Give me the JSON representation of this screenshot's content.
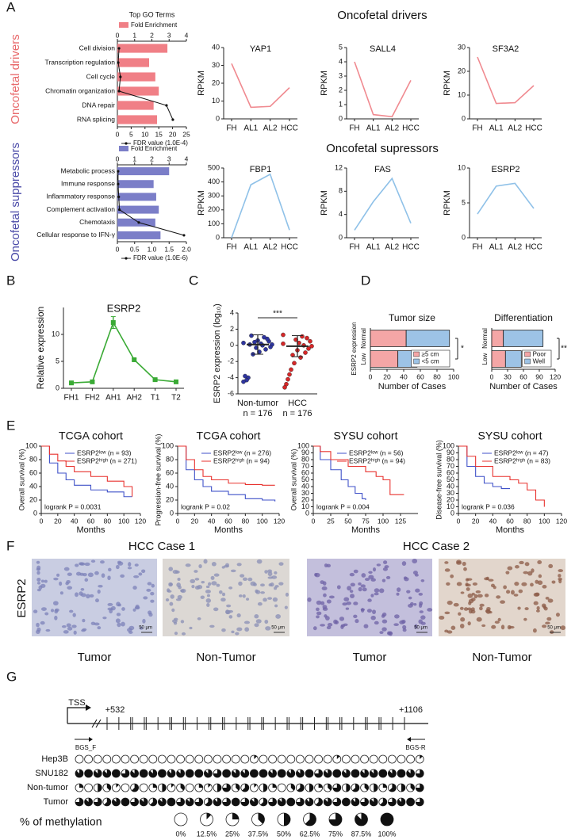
{
  "panel_labels": [
    "A",
    "B",
    "C",
    "D",
    "E",
    "F",
    "G"
  ],
  "panel_a": {
    "row_titles": [
      "Oncofetal drivers",
      "Oncofetal supressors"
    ],
    "side_labels": [
      "Oncofetal drivers",
      "Oncofetal suppressors"
    ]
  },
  "chart_data": [
    {
      "type": "bar",
      "orientation": "horizontal",
      "title": "Top GO Terms",
      "categories": [
        "Cell division",
        "Transcription regulation",
        "Cell cycle",
        "Chromatin organization",
        "DNA repair",
        "RNA splicing"
      ],
      "series": [
        {
          "name": "Fold Enrichment",
          "color": "#f07f86",
          "values": [
            2.9,
            1.84,
            2.2,
            2.4,
            2.1,
            2.3
          ]
        },
        {
          "name": "FDR value (1.0E-4)",
          "color": "#111111",
          "axis": "x2",
          "values": [
            0.6,
            0.3,
            1.1,
            0.6,
            17.8,
            20.1
          ]
        }
      ],
      "xlim": [
        0,
        4
      ],
      "xticks": [
        0,
        1,
        2,
        3,
        4
      ],
      "x2lim": [
        0,
        25
      ],
      "x2ticks": [
        0,
        5,
        10,
        15,
        20,
        25
      ]
    },
    {
      "type": "bar",
      "orientation": "horizontal",
      "categories": [
        "Metabolic process",
        "Immune response",
        "Inflammatory response",
        "Complement activation",
        "Chemotaxis",
        "Cellular response to IFN-γ"
      ],
      "series": [
        {
          "name": "Fold Enrichment",
          "color": "#7b7ec8",
          "values": [
            3.0,
            2.1,
            2.25,
            2.4,
            2.2,
            2.5
          ]
        },
        {
          "name": "FDR value (1.0E-6)",
          "color": "#111111",
          "axis": "x2",
          "values": [
            0.02,
            0.02,
            0.04,
            0.06,
            0.62,
            1.93
          ]
        }
      ],
      "xlim": [
        0,
        4
      ],
      "xticks": [
        0,
        1,
        2,
        3,
        4
      ],
      "x2lim": [
        0,
        2
      ],
      "x2ticks": [
        0,
        0.5,
        {
          "value": 1,
          "label": "1.0"
        },
        1.5,
        {
          "value": 2,
          "label": "2.0"
        }
      ]
    },
    {
      "type": "line",
      "title": "YAP1",
      "ylabel": "RPKM",
      "categories": [
        "FH",
        "AL1",
        "AL2",
        "HCC"
      ],
      "values": [
        31,
        6.5,
        7,
        17.5
      ],
      "color": "#f08a90",
      "ylim": [
        0,
        40
      ],
      "yticks": [
        0,
        10,
        20,
        30,
        40
      ]
    },
    {
      "type": "line",
      "title": "SALL4",
      "ylabel": "RPKM",
      "categories": [
        "FH",
        "AL1",
        "AL2",
        "HCC"
      ],
      "values": [
        4,
        0.3,
        0.15,
        2.7
      ],
      "color": "#f08a90",
      "ylim": [
        0,
        5
      ],
      "yticks": [
        0,
        1,
        2,
        3,
        4,
        5
      ]
    },
    {
      "type": "line",
      "title": "SF3A2",
      "ylabel": "RPKM",
      "categories": [
        "FH",
        "AL1",
        "AL2",
        "HCC"
      ],
      "values": [
        26,
        6.5,
        6.8,
        14
      ],
      "color": "#f08a90",
      "ylim": [
        0,
        30
      ],
      "yticks": [
        0,
        10,
        20,
        30
      ]
    },
    {
      "type": "line",
      "title": "FBP1",
      "ylabel": "RPKM",
      "categories": [
        "FH",
        "AL1",
        "AL2",
        "HCC"
      ],
      "values": [
        0,
        380,
        455,
        55
      ],
      "color": "#8fc1e8",
      "ylim": [
        0,
        500
      ],
      "yticks": [
        0,
        100,
        200,
        300,
        400,
        500
      ]
    },
    {
      "type": "line",
      "title": "FAS",
      "ylabel": "RPKM",
      "categories": [
        "FH",
        "AL1",
        "AL2",
        "HCC"
      ],
      "values": [
        1.3,
        6.2,
        10.2,
        2.5
      ],
      "color": "#8fc1e8",
      "ylim": [
        0,
        12
      ],
      "yticks": [
        0,
        4,
        8,
        12
      ]
    },
    {
      "type": "line",
      "title": "ESRP2",
      "ylabel": "RPKM",
      "categories": [
        "FH",
        "AL1",
        "AL2",
        "HCC"
      ],
      "values": [
        3.4,
        7.4,
        7.8,
        4.2
      ],
      "color": "#8fc1e8",
      "ylim": [
        0,
        10
      ],
      "yticks": [
        0,
        5,
        10
      ]
    },
    {
      "type": "line",
      "title": "ESRP2",
      "ylabel": "Relative expression",
      "categories": [
        "FH1",
        "FH2",
        "AH1",
        "AH2",
        "T1",
        "T2"
      ],
      "values": [
        1.0,
        1.2,
        12.2,
        5.3,
        1.6,
        1.2
      ],
      "errors": [
        0.2,
        0.2,
        1.1,
        0.2,
        0.15,
        0.1
      ],
      "color": "#3aaa35",
      "ylim": [
        0,
        15
      ],
      "yticks": [
        0,
        5,
        10
      ]
    },
    {
      "type": "strip",
      "ylabel": "ESRP2 expression (log₁₀)",
      "categories": [
        "Non-tumor",
        "HCC"
      ],
      "n_labels": [
        "n = 176",
        "n = 176"
      ],
      "significance": "***",
      "colors": [
        "#2e35a0",
        "#d62728"
      ],
      "means": [
        0.1,
        -0.1
      ],
      "sds": [
        1.2,
        1.3
      ],
      "values": [
        [
          0.3,
          0.1,
          -0.2,
          0.5,
          0.8,
          -0.5,
          1.0,
          0.0,
          0.2,
          -0.8,
          0.6,
          -0.3,
          0.4,
          -1.1,
          1.2,
          0.1,
          -4.0,
          -4.3,
          -3.8,
          -4.5
        ],
        [
          0.2,
          -0.1,
          0.5,
          -0.4,
          0.9,
          -0.9,
          0.0,
          1.1,
          -1.5,
          0.3,
          -0.6,
          0.7,
          -2.2,
          -1.2,
          -3.0,
          -3.6,
          -4.2,
          -4.8,
          -5.2,
          1.3
        ]
      ],
      "ylim": [
        -6,
        4
      ],
      "yticks": [
        -6,
        -4,
        -2,
        0,
        2,
        4
      ]
    },
    {
      "type": "stacked",
      "orientation": "horizontal",
      "title": "Tumor size",
      "ylabel": "ESRP2 expression",
      "xlabel": "Number of Cases",
      "significance": "*",
      "categories": [
        "Normal",
        "Low"
      ],
      "series": [
        {
          "name": "≥5 cm",
          "color": "#f4a6a6",
          "values": [
            43,
            33
          ]
        },
        {
          "name": "<5 cm",
          "color": "#9dc3e6",
          "values": [
            52,
            23
          ]
        }
      ],
      "xlim": [
        0,
        100
      ],
      "xticks": [
        0,
        20,
        40,
        60,
        80,
        100
      ]
    },
    {
      "type": "stacked",
      "orientation": "horizontal",
      "title": "Differentiation",
      "xlabel": "Number of Cases",
      "significance": "**",
      "categories": [
        "Normal",
        "Low"
      ],
      "series": [
        {
          "name": "Poor",
          "color": "#f4a6a6",
          "values": [
            22,
            26
          ]
        },
        {
          "name": "Well",
          "color": "#9dc3e6",
          "values": [
            75,
            30
          ]
        }
      ],
      "xlim": [
        0,
        120
      ],
      "xticks": [
        0,
        30,
        60,
        90,
        120
      ]
    },
    {
      "type": "survival",
      "title": "TCGA cohort",
      "ylabel": "Overall survival (%)",
      "xlabel": "Months",
      "annotation": "logrank P = 0.0031",
      "series": [
        {
          "name": "ESRP2ˡᵒʷ (n = 93)",
          "color": "#3f51c8",
          "x": [
            0,
            10,
            20,
            30,
            40,
            60,
            80,
            100,
            110
          ],
          "values": [
            100,
            75,
            60,
            50,
            42,
            35,
            32,
            25,
            25
          ]
        },
        {
          "name": "ESRP2ʰⁱᵍʰ (n = 271)",
          "color": "#e8322e",
          "x": [
            0,
            10,
            20,
            30,
            40,
            60,
            80,
            100,
            110
          ],
          "values": [
            100,
            88,
            78,
            70,
            62,
            55,
            48,
            40,
            25
          ]
        }
      ],
      "xlim": [
        0,
        120
      ],
      "xticks": [
        0,
        20,
        40,
        60,
        80,
        100,
        120
      ],
      "ylim": [
        0,
        100
      ],
      "yticks": [
        0,
        20,
        40,
        60,
        80,
        100
      ]
    },
    {
      "type": "survival",
      "title": "TCGA cohort",
      "ylabel": "Progression-free survival (%)",
      "xlabel": "Months",
      "annotation": "logrank P = 0.02",
      "series": [
        {
          "name": "ESRP2ˡᵒʷ (n = 276)",
          "color": "#3f51c8",
          "x": [
            0,
            10,
            20,
            30,
            40,
            60,
            80,
            100,
            115
          ],
          "values": [
            100,
            65,
            50,
            40,
            33,
            28,
            22,
            20,
            18
          ]
        },
        {
          "name": "ESRP2ʰⁱᵍʰ (n = 94)",
          "color": "#e8322e",
          "x": [
            0,
            10,
            20,
            30,
            40,
            60,
            80,
            100,
            115
          ],
          "values": [
            100,
            80,
            65,
            55,
            50,
            45,
            43,
            42,
            42
          ]
        }
      ],
      "xlim": [
        0,
        120
      ],
      "xticks": [
        0,
        20,
        40,
        60,
        80,
        100,
        120
      ],
      "ylim": [
        0,
        100
      ],
      "yticks": [
        0,
        20,
        40,
        60,
        80,
        100
      ]
    },
    {
      "type": "survival",
      "title": "SYSU cohort",
      "ylabel": "Overall survival (%)",
      "xlabel": "Months",
      "annotation": "logrank P = 0.004",
      "series": [
        {
          "name": "ESRP2ˡᵒʷ (n = 56)",
          "color": "#3f51c8",
          "x": [
            0,
            10,
            25,
            40,
            50,
            60,
            70,
            75
          ],
          "values": [
            100,
            80,
            65,
            50,
            40,
            30,
            22,
            20
          ]
        },
        {
          "name": "ESRP2ʰⁱᵍʰ (n = 94)",
          "color": "#e8322e",
          "x": [
            0,
            10,
            25,
            50,
            75,
            90,
            100,
            110,
            130
          ],
          "values": [
            100,
            92,
            80,
            70,
            62,
            55,
            50,
            28,
            28
          ]
        }
      ],
      "xlim": [
        0,
        150
      ],
      "xticks": [
        0,
        25,
        50,
        75,
        100,
        125
      ],
      "ylim": [
        0,
        100
      ],
      "yticks": [
        0,
        10,
        20,
        30,
        40,
        50,
        60,
        70,
        80,
        90,
        100
      ]
    },
    {
      "type": "survival",
      "title": "SYSU cohort",
      "ylabel": "Disease-free survival (%)",
      "xlabel": "Months",
      "annotation": "logrank P = 0.036",
      "series": [
        {
          "name": "ESRP2ˡᵒʷ (n = 47)",
          "color": "#3f51c8",
          "x": [
            0,
            10,
            20,
            30,
            40,
            50,
            60
          ],
          "values": [
            100,
            70,
            55,
            45,
            40,
            37,
            37
          ]
        },
        {
          "name": "ESRP2ʰⁱᵍʰ (n = 83)",
          "color": "#e8322e",
          "x": [
            0,
            10,
            20,
            40,
            60,
            70,
            80,
            90,
            100
          ],
          "values": [
            100,
            85,
            70,
            55,
            50,
            45,
            35,
            20,
            10
          ]
        }
      ],
      "xlim": [
        0,
        120
      ],
      "xticks": [
        0,
        20,
        40,
        60,
        80,
        100,
        120
      ],
      "ylim": [
        0,
        100
      ],
      "yticks": [
        0,
        10,
        20,
        30,
        40,
        50,
        60,
        70,
        80,
        90,
        100
      ]
    }
  ],
  "images": {
    "titles": [
      "HCC Case 1",
      "HCC Case 2"
    ],
    "stain_label": "ESRP2",
    "labels": [
      "Tumor",
      "Non-Tumor",
      "Tumor",
      "Non-Tumor"
    ],
    "scale_bars": [
      "50 μm",
      "50 μm",
      "50 μm",
      "50 μm"
    ]
  },
  "methylation": {
    "tss": "TSS",
    "start": "+532",
    "end": "+1106",
    "primers": [
      "BGS_F",
      "BGS-R"
    ],
    "samples": [
      {
        "name": "Hep3B",
        "values": [
          0,
          0,
          0,
          0,
          0,
          0,
          0,
          0,
          0,
          0,
          0,
          0,
          0,
          0,
          0,
          0,
          0,
          0,
          0,
          12.5,
          0,
          0,
          0,
          0,
          0,
          0,
          0,
          0,
          12.5,
          0,
          0,
          0,
          0,
          0,
          0,
          0,
          0,
          12.5
        ]
      },
      {
        "name": "SNU182",
        "values": [
          87.5,
          100,
          87.5,
          87.5,
          100,
          75,
          87.5,
          100,
          87.5,
          100,
          87.5,
          87.5,
          100,
          100,
          87.5,
          75,
          100,
          87.5,
          87.5,
          100,
          100,
          87.5,
          100,
          87.5,
          87.5,
          100,
          75,
          87.5,
          100,
          87.5,
          100,
          87.5,
          87.5,
          100,
          87.5,
          100,
          87.5,
          75
        ]
      },
      {
        "name": "Non-tumor",
        "values": [
          25,
          0,
          50,
          37.5,
          12.5,
          0,
          62.5,
          0,
          25,
          50,
          12.5,
          37.5,
          0,
          25,
          12.5,
          50,
          75,
          37.5,
          62.5,
          12.5,
          50,
          25,
          0,
          37.5,
          62.5,
          50,
          25,
          37.5,
          75,
          50,
          62.5,
          37.5,
          50,
          25,
          62.5,
          50,
          37.5,
          75
        ]
      },
      {
        "name": "Tumor",
        "values": [
          75,
          87.5,
          75,
          62.5,
          87.5,
          100,
          75,
          87.5,
          62.5,
          87.5,
          100,
          75,
          87.5,
          75,
          62.5,
          87.5,
          75,
          100,
          75,
          87.5,
          62.5,
          75,
          87.5,
          100,
          75,
          87.5,
          62.5,
          87.5,
          75,
          100,
          87.5,
          75,
          87.5,
          62.5,
          75,
          87.5,
          100,
          75
        ]
      }
    ],
    "legend_title": "% of methylation",
    "legend": [
      {
        "value": 0,
        "label": "0%"
      },
      {
        "value": 12.5,
        "label": "12.5%"
      },
      {
        "value": 25,
        "label": "25%"
      },
      {
        "value": 37.5,
        "label": "37.5%"
      },
      {
        "value": 50,
        "label": "50%"
      },
      {
        "value": 62.5,
        "label": "62.5%"
      },
      {
        "value": 75,
        "label": "75%"
      },
      {
        "value": 87.5,
        "label": "87.5%"
      },
      {
        "value": 100,
        "label": "100%"
      }
    ]
  }
}
